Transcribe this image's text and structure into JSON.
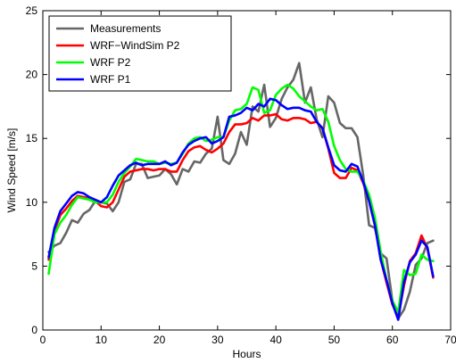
{
  "chart_data": {
    "type": "line",
    "xlabel": "Hours",
    "ylabel": "Wind Speed [m/s]",
    "xlim": [
      0,
      70
    ],
    "ylim": [
      0,
      25
    ],
    "xticks": [
      0,
      10,
      20,
      30,
      40,
      50,
      60,
      70
    ],
    "yticks": [
      0,
      5,
      10,
      15,
      20,
      25
    ],
    "xtick_labels": [
      "0",
      "10",
      "20",
      "30",
      "40",
      "50",
      "60",
      "70"
    ],
    "ytick_labels": [
      "0",
      "5",
      "10",
      "15",
      "20",
      "25"
    ],
    "grid": false,
    "legend_position": "top-left",
    "x": [
      1,
      2,
      3,
      4,
      5,
      6,
      7,
      8,
      9,
      10,
      11,
      12,
      13,
      14,
      15,
      16,
      17,
      18,
      19,
      20,
      21,
      22,
      23,
      24,
      25,
      26,
      27,
      28,
      29,
      30,
      31,
      32,
      33,
      34,
      35,
      36,
      37,
      38,
      39,
      40,
      41,
      42,
      43,
      44,
      45,
      46,
      47,
      48,
      49,
      50,
      51,
      52,
      53,
      54,
      55,
      56,
      57,
      58,
      59,
      60,
      61,
      62,
      63,
      64,
      65,
      66,
      67
    ],
    "series": [
      {
        "name": "Measurements",
        "color": "#666666",
        "values": [
          6.1,
          6.6,
          6.8,
          7.6,
          8.6,
          8.4,
          9.1,
          9.4,
          10.1,
          10.0,
          9.9,
          9.3,
          10.0,
          11.6,
          11.8,
          13.0,
          13.0,
          11.9,
          12.0,
          12.1,
          12.6,
          12.2,
          11.4,
          12.6,
          12.4,
          13.2,
          13.1,
          13.8,
          14.2,
          16.7,
          13.3,
          13.0,
          13.8,
          15.5,
          14.5,
          17.5,
          17.1,
          19.2,
          15.9,
          16.6,
          18.1,
          19.0,
          19.6,
          20.9,
          17.8,
          19.0,
          16.5,
          15.1,
          18.3,
          17.8,
          16.2,
          15.8,
          15.8,
          15.1,
          12.1,
          8.2,
          8.0,
          6.0,
          5.6,
          2.3,
          0.9,
          1.6,
          3.0,
          5.1,
          5.6,
          6.8,
          7.0
        ]
      },
      {
        "name": "WRF−WindSim P2",
        "color": "#ff0000",
        "values": [
          5.5,
          7.8,
          9.0,
          9.5,
          10.1,
          10.5,
          10.4,
          10.3,
          10.1,
          9.7,
          9.6,
          10.0,
          11.0,
          12.0,
          12.4,
          12.5,
          12.6,
          12.6,
          12.5,
          12.6,
          12.6,
          12.4,
          12.4,
          13.3,
          14.0,
          14.3,
          14.4,
          14.1,
          13.9,
          14.2,
          14.6,
          15.5,
          16.1,
          16.1,
          16.2,
          16.6,
          16.4,
          16.8,
          16.8,
          16.9,
          16.5,
          16.4,
          16.6,
          16.6,
          16.5,
          16.2,
          16.3,
          15.8,
          14.2,
          12.3,
          11.9,
          11.9,
          12.7,
          12.5,
          11.5,
          10.1,
          8.2,
          5.5,
          3.7,
          2.0,
          1.0,
          3.5,
          5.4,
          6.0,
          7.4,
          6.4,
          4.1
        ]
      },
      {
        "name": "WRF P2",
        "color": "#00ff00",
        "values": [
          4.4,
          7.5,
          8.4,
          9.0,
          9.8,
          10.4,
          10.3,
          10.2,
          10.0,
          10.0,
          10.0,
          10.6,
          11.6,
          12.3,
          12.8,
          13.4,
          13.3,
          13.2,
          13.2,
          13.0,
          13.1,
          13.0,
          13.1,
          13.8,
          14.6,
          15.0,
          15.1,
          14.8,
          14.9,
          15.1,
          15.1,
          16.4,
          17.2,
          17.3,
          17.7,
          19.0,
          18.8,
          17.0,
          17.2,
          18.4,
          18.9,
          19.2,
          18.9,
          18.3,
          17.9,
          17.5,
          17.2,
          17.3,
          16.3,
          14.4,
          13.3,
          12.6,
          12.4,
          12.4,
          11.7,
          10.6,
          8.8,
          6.1,
          3.9,
          2.3,
          1.4,
          4.7,
          4.3,
          4.4,
          5.9,
          5.5,
          5.4
        ]
      },
      {
        "name": "WRF P1",
        "color": "#0000ff",
        "values": [
          5.7,
          8.0,
          9.3,
          9.9,
          10.5,
          10.8,
          10.7,
          10.4,
          10.2,
          10.0,
          10.4,
          11.3,
          12.1,
          12.5,
          12.9,
          13.1,
          12.9,
          13.0,
          13.0,
          13.0,
          13.2,
          12.9,
          13.1,
          13.9,
          14.5,
          14.8,
          15.0,
          15.1,
          14.6,
          14.8,
          15.1,
          16.7,
          16.8,
          17.0,
          17.4,
          17.2,
          17.7,
          17.5,
          18.1,
          18.0,
          17.6,
          17.3,
          17.4,
          17.4,
          17.2,
          17.1,
          16.3,
          15.8,
          14.3,
          12.9,
          12.5,
          12.4,
          13.0,
          12.8,
          11.6,
          10.1,
          8.2,
          5.5,
          3.9,
          2.1,
          0.8,
          3.8,
          5.3,
          5.9,
          7.0,
          6.5,
          4.2
        ]
      }
    ]
  }
}
